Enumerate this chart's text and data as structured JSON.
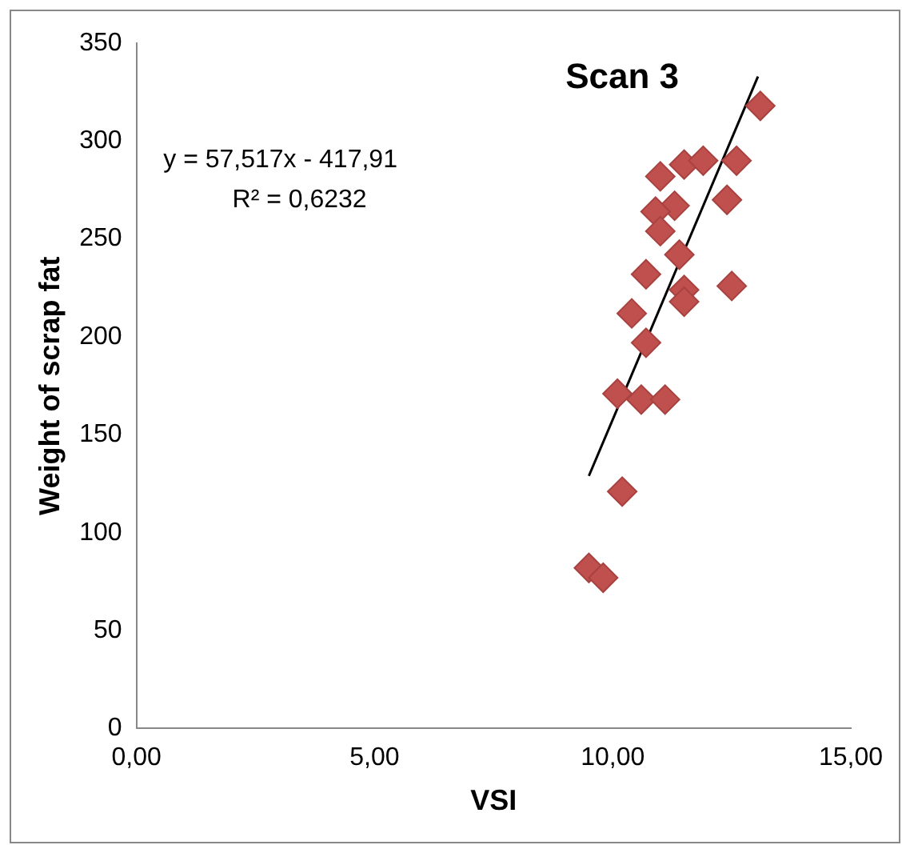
{
  "chart_data": {
    "type": "scatter",
    "title": "Scan 3",
    "xlabel": "VSI",
    "ylabel": "Weight of scrap fat",
    "annotations": [
      "y = 57,517x - 417,91",
      "R² = 0,6232"
    ],
    "series": [
      {
        "color": "#c0504d",
        "marker": "diamond",
        "x": [
          13.1,
          12.6,
          12.4,
          11.0,
          11.5,
          11.9,
          11.3,
          10.9,
          11.0,
          11.4,
          10.7,
          11.5,
          11.5,
          12.5,
          10.4,
          10.7,
          10.1,
          10.6,
          11.1,
          10.2,
          9.5,
          9.8
        ],
        "values": [
          318,
          290,
          270,
          282,
          288,
          290,
          267,
          264,
          254,
          242,
          232,
          224,
          218,
          226,
          212,
          197,
          171,
          168,
          168,
          121,
          82,
          77
        ]
      },
      {
        "type": "line",
        "color": "#000000",
        "marker": "none",
        "x": [
          9.5,
          13.05
        ],
        "values": [
          129,
          333
        ]
      }
    ],
    "xlim": [
      0,
      15
    ],
    "xticks": [
      {
        "value": 0,
        "label": "0,00"
      },
      {
        "value": 5,
        "label": "5,00"
      },
      {
        "value": 10,
        "label": "10,00"
      },
      {
        "value": 15,
        "label": "15,00"
      }
    ],
    "ylim": [
      0,
      350
    ],
    "yticks": [
      0,
      50,
      100,
      150,
      200,
      250,
      300,
      350
    ],
    "grid": false,
    "legend": false
  }
}
